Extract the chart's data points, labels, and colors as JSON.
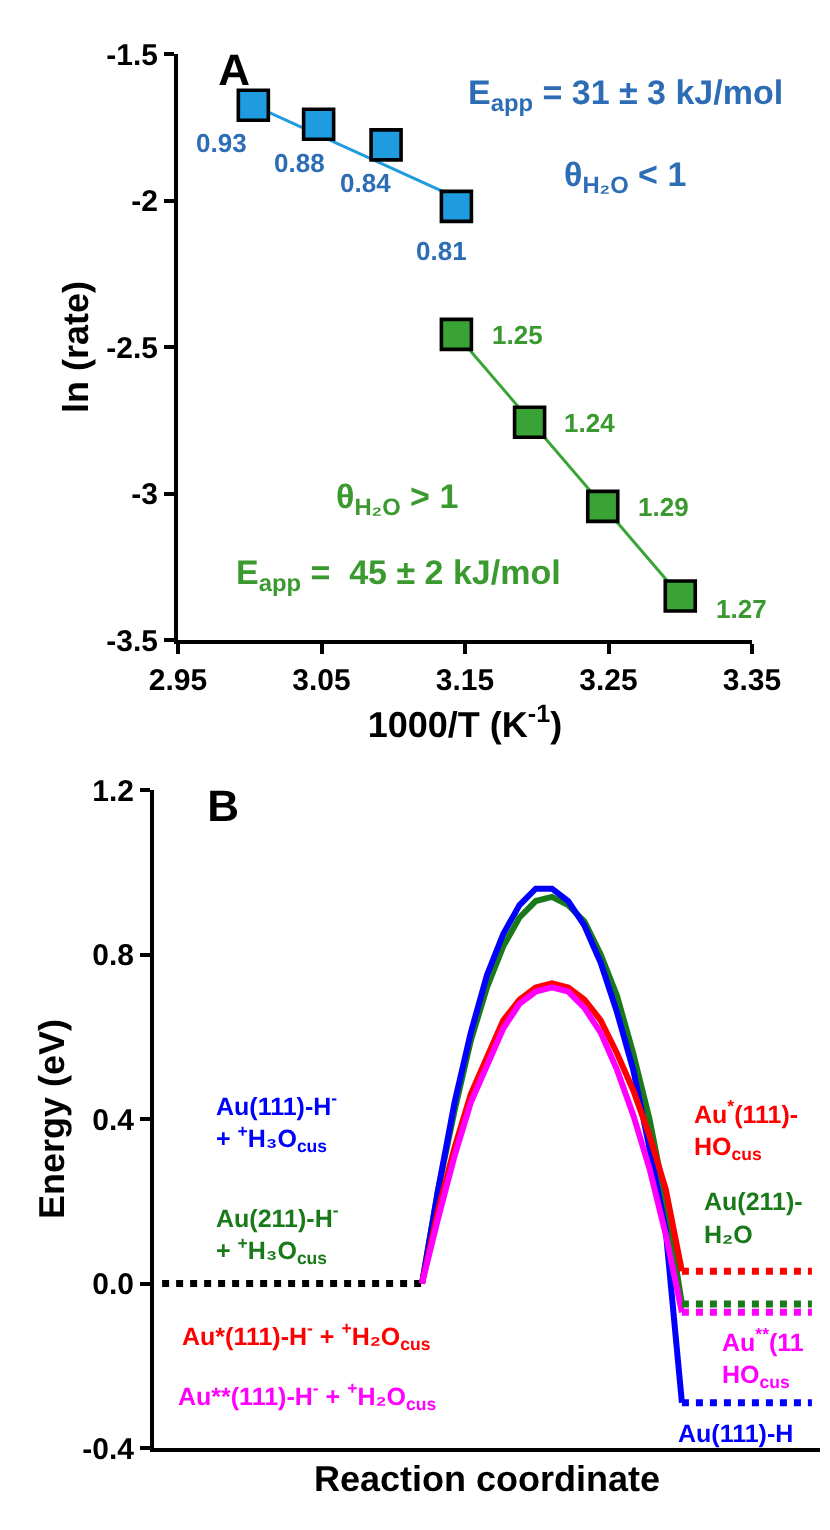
{
  "chart_data": [
    {
      "type": "scatter",
      "title": "A",
      "xlabel": "1000/T (K$^{-1}$)",
      "ylabel": "ln (rate)",
      "xlim": [
        2.95,
        3.35
      ],
      "xticks": [
        2.95,
        3.05,
        3.15,
        3.25,
        3.35
      ],
      "ylim": [
        -3.5,
        -1.5
      ],
      "yticks": [
        -3.5,
        -3,
        -2.5,
        -2,
        -1.5
      ],
      "grid": false,
      "marker": "square",
      "annotations": [
        "E$_{app}$ = 31 ± 3 kJ/mol",
        "θ$_{H₂O}$ < 1",
        "θ$_{H₂O}$ > 1",
        "E$_{app}$ =  45 ± 2 kJ/mol",
        {
          "text": "0.93",
          "x": 3.0025,
          "y": -1.675
        },
        {
          "text": "0.88",
          "x": 3.048,
          "y": -1.74
        },
        {
          "text": "0.84",
          "x": 3.095,
          "y": -1.81
        },
        {
          "text": "0.81",
          "x": 3.144,
          "y": -2.02
        },
        {
          "text": "1.25",
          "x": 3.144,
          "y": -2.457
        },
        {
          "text": "1.24",
          "x": 3.195,
          "y": -2.757
        },
        {
          "text": "1.29",
          "x": 3.246,
          "y": -3.044
        },
        {
          "text": "1.27",
          "x": 3.3,
          "y": -3.35
        }
      ],
      "series": [
        {
          "type": "line",
          "color": "#1f9be0",
          "x": [
            3.0025,
            3.144
          ],
          "values": [
            -1.675,
            -1.99
          ],
          "marker": "none",
          "line_style": "solid"
        },
        {
          "type": "line",
          "color": "#3aa335",
          "x": [
            3.144,
            3.3
          ],
          "values": [
            -2.457,
            -3.35
          ],
          "marker": "none",
          "line_style": "solid"
        },
        {
          "color": "#1f9be0",
          "x": [
            3.0025,
            3.048,
            3.095,
            3.144
          ],
          "values": [
            -1.675,
            -1.74,
            -1.81,
            -2.02
          ]
        },
        {
          "color": "#3aa335",
          "x": [
            3.144,
            3.195,
            3.246,
            3.3
          ],
          "values": [
            -2.457,
            -2.757,
            -3.044,
            -3.35
          ]
        }
      ]
    },
    {
      "type": "line",
      "title": "B",
      "xlabel": "Reaction coordinate",
      "ylabel": "Energy (eV)",
      "ylim": [
        -0.4,
        1.2
      ],
      "yticks": [
        {
          "value": -0.4,
          "label": "-0.4"
        },
        {
          "value": 0,
          "label": "0.0"
        },
        {
          "value": 0.4,
          "label": "0.4"
        },
        {
          "value": 0.8,
          "label": "0.8"
        },
        {
          "value": 1.2,
          "label": "1.2"
        }
      ],
      "grid": false,
      "marker": "none",
      "categories": [
        null,
        null,
        null,
        null,
        null,
        null,
        null,
        null,
        null,
        null,
        null,
        null,
        null,
        null,
        null,
        null,
        null,
        null,
        null,
        null,
        null,
        null,
        null,
        null,
        null,
        null,
        null,
        null,
        null,
        null,
        null,
        null,
        null,
        null,
        null,
        null,
        null,
        null,
        null,
        null,
        null
      ],
      "annotations": [
        "Au(111)-H$^{-}$\n+ $^{+}$H₃O$_{cus}$",
        "Au(211)-H$^{-}$\n+ $^{+}$H₃O$_{cus}$",
        "Au*(111)-H$^{-}$ + $^{+}$H₂O$_{cus}$",
        "Au**(111)-H$^{-}$ + $^{+}$H₂O$_{cus}$",
        "Au$^{*}$(111)-\nHO$_{cus}$",
        "Au(211)-\nH₂O",
        "Au$^{**}$(11\nHO$_{cus}$",
        "Au(111)-H"
      ],
      "series": [
        {
          "color": "#000000",
          "line_style": "dotted",
          "values": [
            0,
            0,
            0,
            0,
            0,
            0,
            0,
            0,
            0,
            0,
            0,
            0,
            0,
            0,
            0,
            0,
            0,
            null,
            null,
            null,
            null,
            null,
            null,
            null,
            null,
            null,
            null,
            null,
            null,
            null,
            null,
            null,
            null,
            null,
            null,
            null,
            null,
            null,
            null,
            null,
            null
          ]
        },
        {
          "color": "#1a7a1a",
          "line_style": "solid",
          "values": [
            null,
            null,
            null,
            null,
            null,
            null,
            null,
            null,
            null,
            null,
            null,
            null,
            null,
            null,
            null,
            null,
            0,
            0.23,
            0.42,
            0.59,
            0.72,
            0.82,
            0.89,
            0.93,
            0.94,
            0.92,
            0.88,
            0.8,
            0.7,
            0.56,
            0.4,
            0.2,
            -0.05,
            null,
            null,
            null,
            null,
            null,
            null,
            null,
            null
          ]
        },
        {
          "color": "#0000ff",
          "line_style": "solid",
          "values": [
            null,
            null,
            null,
            null,
            null,
            null,
            null,
            null,
            null,
            null,
            null,
            null,
            null,
            null,
            null,
            null,
            0,
            0.23,
            0.44,
            0.61,
            0.75,
            0.85,
            0.92,
            0.96,
            0.96,
            0.93,
            0.87,
            0.78,
            0.66,
            0.52,
            0.33,
            0.13,
            -0.29,
            null,
            null,
            null,
            null,
            null,
            null,
            null,
            null
          ]
        },
        {
          "color": "#ff0000",
          "line_style": "solid",
          "values": [
            null,
            null,
            null,
            null,
            null,
            null,
            null,
            null,
            null,
            null,
            null,
            null,
            null,
            null,
            null,
            null,
            0,
            0.18,
            0.33,
            0.46,
            0.55,
            0.64,
            0.69,
            0.72,
            0.73,
            0.72,
            0.69,
            0.64,
            0.56,
            0.47,
            0.36,
            0.23,
            0.03,
            null,
            null,
            null,
            null,
            null,
            null,
            null,
            null
          ]
        },
        {
          "color": "#ff00ff",
          "line_style": "solid",
          "values": [
            null,
            null,
            null,
            null,
            null,
            null,
            null,
            null,
            null,
            null,
            null,
            null,
            null,
            null,
            null,
            null,
            0,
            0.16,
            0.31,
            0.44,
            0.53,
            0.62,
            0.68,
            0.71,
            0.72,
            0.71,
            0.67,
            0.61,
            0.52,
            0.41,
            0.28,
            0.12,
            -0.07,
            null,
            null,
            null,
            null,
            null,
            null,
            null,
            null
          ]
        },
        {
          "color": "#ff0000",
          "line_style": "dotted",
          "values": [
            null,
            null,
            null,
            null,
            null,
            null,
            null,
            null,
            null,
            null,
            null,
            null,
            null,
            null,
            null,
            null,
            null,
            null,
            null,
            null,
            null,
            null,
            null,
            null,
            null,
            null,
            null,
            null,
            null,
            null,
            null,
            null,
            0.03,
            0.03,
            0.03,
            0.03,
            0.03,
            0.03,
            0.03,
            0.03,
            0.03
          ]
        },
        {
          "color": "#1a7a1a",
          "line_style": "dotted",
          "values": [
            null,
            null,
            null,
            null,
            null,
            null,
            null,
            null,
            null,
            null,
            null,
            null,
            null,
            null,
            null,
            null,
            null,
            null,
            null,
            null,
            null,
            null,
            null,
            null,
            null,
            null,
            null,
            null,
            null,
            null,
            null,
            null,
            -0.05,
            -0.05,
            -0.05,
            -0.05,
            -0.05,
            -0.05,
            -0.05,
            -0.05,
            -0.05
          ]
        },
        {
          "color": "#ff00ff",
          "line_style": "dotted",
          "values": [
            null,
            null,
            null,
            null,
            null,
            null,
            null,
            null,
            null,
            null,
            null,
            null,
            null,
            null,
            null,
            null,
            null,
            null,
            null,
            null,
            null,
            null,
            null,
            null,
            null,
            null,
            null,
            null,
            null,
            null,
            null,
            null,
            -0.07,
            -0.07,
            -0.07,
            -0.07,
            -0.07,
            -0.07,
            -0.07,
            -0.07,
            -0.07
          ]
        },
        {
          "color": "#0000ff",
          "line_style": "dotted",
          "values": [
            null,
            null,
            null,
            null,
            null,
            null,
            null,
            null,
            null,
            null,
            null,
            null,
            null,
            null,
            null,
            null,
            null,
            null,
            null,
            null,
            null,
            null,
            null,
            null,
            null,
            null,
            null,
            null,
            null,
            null,
            null,
            null,
            -0.29,
            -0.29,
            -0.29,
            -0.29,
            -0.29,
            -0.29,
            -0.29,
            -0.29,
            -0.29
          ]
        }
      ]
    }
  ]
}
